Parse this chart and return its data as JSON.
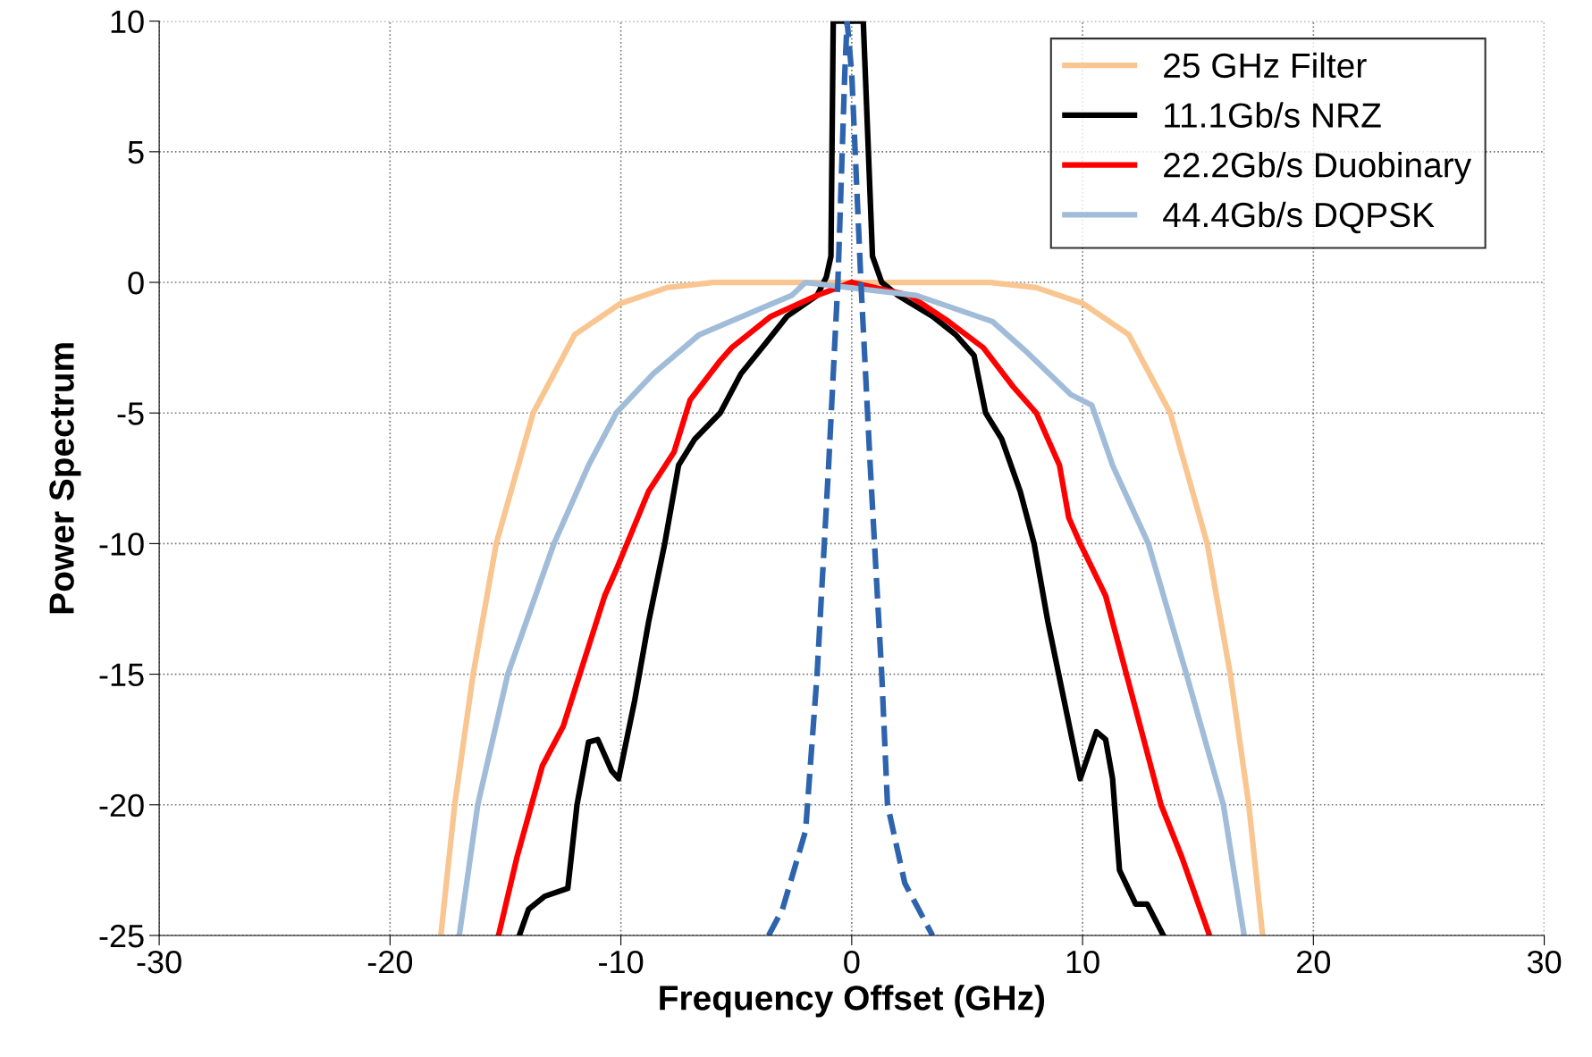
{
  "chart_data": {
    "type": "line",
    "xlabel": "Frequency Offset (GHz)",
    "ylabel": "Power Spectrum",
    "xlim": [
      -30,
      30
    ],
    "ylim": [
      -25,
      10
    ],
    "xticks": [
      -30,
      -20,
      -10,
      0,
      10,
      20,
      30
    ],
    "yticks": [
      -25,
      -20,
      -15,
      -10,
      -5,
      0,
      5,
      10
    ],
    "grid": true,
    "legend": "top right",
    "marker": "none",
    "series": [
      {
        "name": "25 GHz Filter",
        "color": "#f9c590",
        "line_style": "solid",
        "x": [
          -17.8,
          -17.2,
          -16.4,
          -15.4,
          -13.8,
          -12,
          -10,
          -8,
          -6,
          0,
          6,
          8,
          10,
          12,
          13.8,
          15.4,
          16.4,
          17.2,
          17.8
        ],
        "values": [
          -25,
          -20,
          -15,
          -10,
          -5,
          -2,
          -0.8,
          -0.2,
          0,
          0,
          0,
          -0.2,
          -0.8,
          -2,
          -5,
          -10,
          -15,
          -20,
          -25
        ]
      },
      {
        "name": "11.1Gb/s NRZ",
        "color": "#000000",
        "line_style": "solid",
        "x": [
          -14.4,
          -14,
          -13.3,
          -12.3,
          -11.9,
          -11.4,
          -11,
          -10.4,
          -10.1,
          -9.4,
          -8.8,
          -8.1,
          -7.5,
          -6.8,
          -5.7,
          -4.8,
          -3.7,
          -2.8,
          -1.5,
          -1.1,
          -0.9,
          -0.8,
          0.5,
          0.9,
          1.3,
          2,
          3.5,
          4.5,
          5.3,
          5.8,
          6.5,
          7.3,
          7.9,
          8.5,
          9.2,
          9.9,
          10.6,
          11,
          11.3,
          11.6,
          12.3,
          12.8,
          13.5
        ],
        "values": [
          -25,
          -24,
          -23.5,
          -23.2,
          -20,
          -17.6,
          -17.5,
          -18.7,
          -19,
          -16,
          -13,
          -10,
          -7,
          -6,
          -5,
          -3.5,
          -2.3,
          -1.3,
          -0.5,
          0.2,
          1,
          10,
          10,
          1,
          0,
          -0.5,
          -1.3,
          -2,
          -2.8,
          -5,
          -6,
          -8,
          -10,
          -13,
          -16,
          -19,
          -17.2,
          -17.5,
          -19,
          -22.5,
          -23.8,
          -23.8,
          -25
        ]
      },
      {
        "name": "22.2Gb/s Duobinary",
        "color": "#ff0000",
        "line_style": "solid",
        "x": [
          -15.3,
          -14.5,
          -13.4,
          -12.5,
          -10.7,
          -10.2,
          -8.8,
          -7.7,
          -7,
          -5.7,
          -5.2,
          -3.5,
          -1.5,
          0,
          1.5,
          2.5,
          4.2,
          5.7,
          7,
          8,
          9,
          9.4,
          9.9,
          11,
          11.9,
          12.5,
          13.4,
          14.3,
          15.5
        ],
        "values": [
          -25,
          -22,
          -18.5,
          -17,
          -12,
          -11,
          -8,
          -6.5,
          -4.5,
          -3,
          -2.5,
          -1.3,
          -0.5,
          0,
          -0.3,
          -0.5,
          -1.5,
          -2.5,
          -4,
          -5,
          -7,
          -9,
          -10,
          -12,
          -15,
          -17,
          -20,
          -22,
          -25
        ]
      },
      {
        "name": "44.4Gb/s DQPSK",
        "color": "#a0bcd8",
        "line_style": "solid",
        "x": [
          -17,
          -16.2,
          -14.9,
          -12.9,
          -11.4,
          -10.2,
          -8.6,
          -6.6,
          -3.95,
          -2.6,
          -2,
          2.8,
          6.1,
          7.5,
          9.5,
          10.4,
          11.3,
          12.85,
          14.5,
          16.1,
          17
        ],
        "values": [
          -25,
          -20,
          -15,
          -10,
          -7,
          -5,
          -3.5,
          -2,
          -1,
          -0.5,
          0,
          -0.5,
          -1.5,
          -2.6,
          -4.3,
          -4.7,
          -7,
          -10,
          -15,
          -20,
          -25
        ]
      },
      {
        "color": "#2e64ad",
        "line_style": "dashed",
        "x": [
          -3.6,
          -3,
          -2,
          -1.5,
          -1,
          -0.6,
          -0.3,
          -0.2,
          0,
          0.4,
          0.8,
          1.3,
          1.55,
          2.3,
          3.5
        ],
        "values": [
          -25,
          -24,
          -21,
          -15,
          -7,
          0,
          8,
          10,
          8,
          0,
          -7,
          -15,
          -20,
          -23,
          -25
        ]
      }
    ]
  }
}
